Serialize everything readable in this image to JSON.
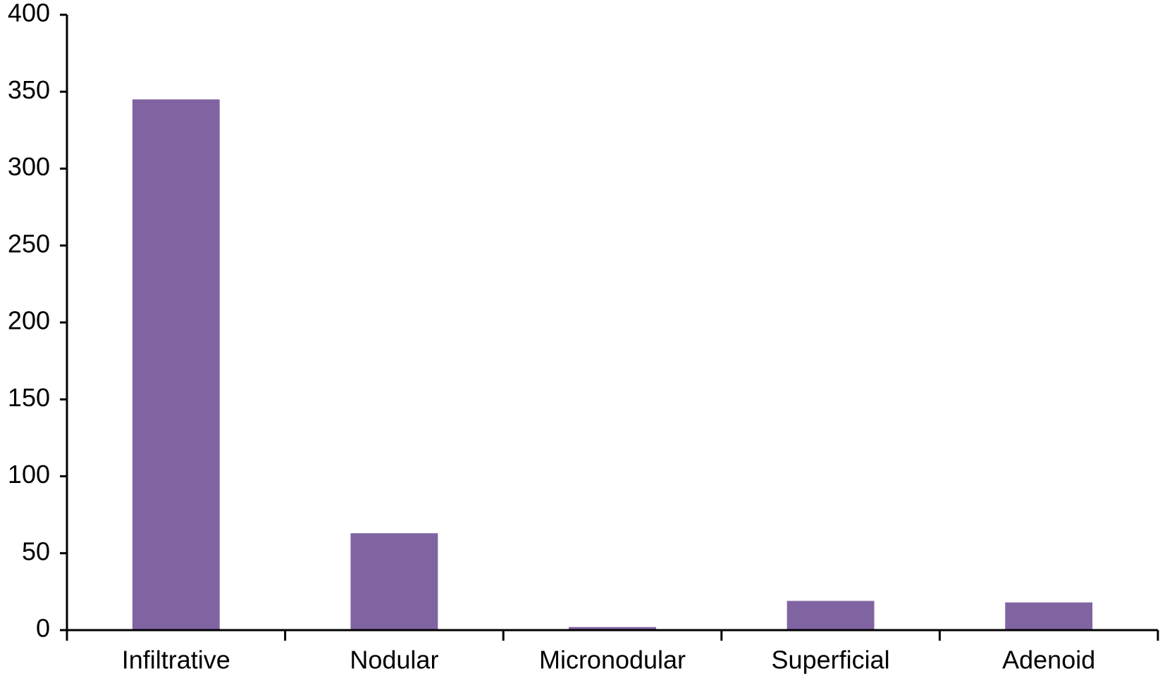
{
  "chart_data": {
    "type": "bar",
    "categories": [
      "Infiltrative",
      "Nodular",
      "Micronodular",
      "Superficial",
      "Adenoid"
    ],
    "values": [
      345,
      63,
      2,
      19,
      18
    ],
    "color": "#8064a2",
    "ylim": [
      0,
      400
    ],
    "yticks": [
      0,
      50,
      100,
      150,
      200,
      250,
      300,
      350,
      400
    ],
    "grid": false
  }
}
